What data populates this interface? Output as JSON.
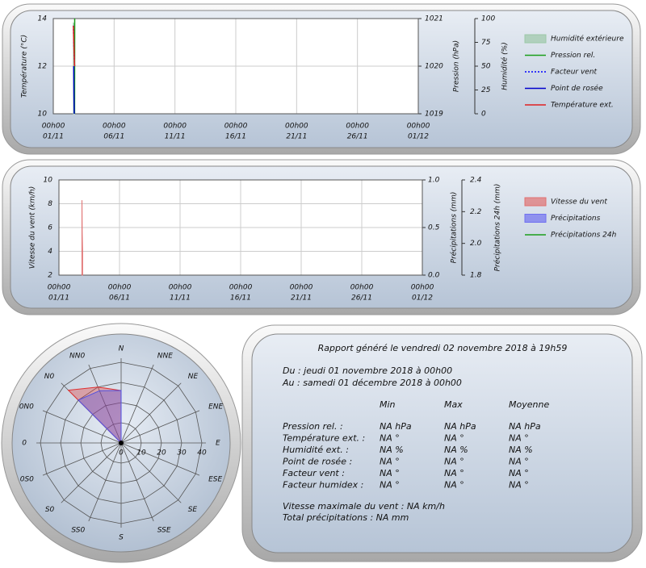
{
  "chart_data": [
    {
      "type": "line",
      "xlim": [
        1,
        31
      ],
      "xticks": [
        {
          "value": 1,
          "label": [
            "00h00",
            "01/11"
          ]
        },
        {
          "value": 6,
          "label": [
            "00h00",
            "06/11"
          ]
        },
        {
          "value": 11,
          "label": [
            "00h00",
            "11/11"
          ]
        },
        {
          "value": 16,
          "label": [
            "00h00",
            "16/11"
          ]
        },
        {
          "value": 21,
          "label": [
            "00h00",
            "21/11"
          ]
        },
        {
          "value": 26,
          "label": [
            "00h00",
            "26/11"
          ]
        },
        {
          "value": 31,
          "label": [
            "00h00",
            "01/12"
          ]
        }
      ],
      "ylabel": "Température (°C)",
      "ylim": [
        10,
        14
      ],
      "yticks": [
        10,
        12,
        14
      ],
      "y2label": "Pression (hPa)",
      "y2lim": [
        1019,
        1021
      ],
      "y2ticks": [
        1019,
        1020,
        1021
      ],
      "y3label": "Humidité (%)",
      "y3lim": [
        0,
        100
      ],
      "y3ticks": [
        0,
        25,
        50,
        75,
        100
      ],
      "grid": true,
      "legend": "right",
      "series": [
        {
          "name": "Humidité extérieure",
          "style": "area",
          "color": "#9cc8a8",
          "axis": "y3",
          "x": [
            2.65,
            2.7,
            2.75
          ],
          "values": [
            95,
            94,
            96
          ]
        },
        {
          "name": "Pression rel.",
          "style": "line",
          "color": "#1a9e1a",
          "axis": "y2",
          "x": [
            2.75,
            2.76
          ],
          "values": [
            1019.0,
            1021.0
          ]
        },
        {
          "name": "Facteur vent",
          "style": "dotted",
          "color": "#0000ff",
          "x": [
            2.65,
            2.7,
            2.75
          ],
          "values": [
            13.7,
            12.8,
            12.0
          ]
        },
        {
          "name": "Point de rosée",
          "style": "line",
          "color": "#0000cc",
          "x": [
            2.68,
            2.7,
            2.72
          ],
          "values": [
            12.0,
            10.8,
            10.0
          ]
        },
        {
          "name": "Température ext.",
          "style": "line",
          "color": "#e02020",
          "x": [
            2.65,
            2.7,
            2.75
          ],
          "values": [
            13.7,
            12.8,
            12.0
          ]
        }
      ]
    },
    {
      "type": "line",
      "xlim": [
        1,
        31
      ],
      "xticks": [
        {
          "value": 1,
          "label": [
            "00h00",
            "01/11"
          ]
        },
        {
          "value": 6,
          "label": [
            "00h00",
            "06/11"
          ]
        },
        {
          "value": 11,
          "label": [
            "00h00",
            "11/11"
          ]
        },
        {
          "value": 16,
          "label": [
            "00h00",
            "16/11"
          ]
        },
        {
          "value": 21,
          "label": [
            "00h00",
            "21/11"
          ]
        },
        {
          "value": 26,
          "label": [
            "00h00",
            "26/11"
          ]
        },
        {
          "value": 31,
          "label": [
            "00h00",
            "01/12"
          ]
        }
      ],
      "ylabel": "Vitesse du vent (km/h)",
      "ylim": [
        2,
        10
      ],
      "yticks": [
        2,
        4,
        6,
        8,
        10
      ],
      "y2label": "Précipitations (mm)",
      "y2lim": [
        0,
        1
      ],
      "y2ticks": [
        {
          "value": 0,
          "label": "0.0"
        },
        0.5,
        {
          "value": 1,
          "label": "1.0"
        }
      ],
      "y3label": "Précipitations 24h (mm)",
      "y3lim": [
        1.8,
        2.4
      ],
      "y3ticks": [
        1.8,
        {
          "value": 2,
          "label": "2.0"
        },
        2.2,
        2.4
      ],
      "grid": true,
      "legend": "right",
      "series": [
        {
          "name": "Vitesse du vent",
          "style": "area",
          "color": "#e07070",
          "x": [
            2.9,
            2.92,
            2.95
          ],
          "values": [
            8.3,
            5.5,
            4.0
          ]
        },
        {
          "name": "Précipitations",
          "style": "area",
          "color": "#7070f0",
          "axis": "y2",
          "x": [],
          "values": []
        },
        {
          "name": "Précipitations 24h",
          "style": "line",
          "color": "#1a9e1a",
          "axis": "y3",
          "x": [],
          "values": []
        }
      ]
    },
    {
      "type": "radar",
      "categories": [
        "N",
        "NNE",
        "NE",
        "ENE",
        "E",
        "ESE",
        "SE",
        "SSE",
        "S",
        "SS0",
        "S0",
        "0S0",
        "0",
        "0N0",
        "N0",
        "NN0"
      ],
      "rlim": [
        0,
        42
      ],
      "rticks": [
        0,
        10,
        20,
        30,
        40
      ],
      "series": [
        {
          "color": "#e03030",
          "values": [
            26,
            0,
            0,
            0,
            0,
            0,
            0,
            0,
            0,
            0,
            0,
            0,
            0,
            0,
            37,
            30
          ]
        },
        {
          "color": "#5050e0",
          "values": [
            26,
            0,
            0,
            0,
            0,
            0,
            0,
            0,
            0,
            0,
            0,
            0,
            0,
            0,
            30,
            28
          ]
        }
      ]
    }
  ],
  "report": {
    "title": "Rapport généré le vendredi 02 novembre 2018 à 19h59",
    "du": "Du : jeudi 01 novembre 2018 à 00h00",
    "au": "Au : samedi 01 décembre 2018 à 00h00",
    "headers": [
      "Min",
      "Max",
      "Moyenne"
    ],
    "rows": [
      {
        "label": "Pression rel. :",
        "cells": [
          "NA hPa",
          "NA hPa",
          "NA hPa"
        ]
      },
      {
        "label": "Température ext. :",
        "cells": [
          "NA °",
          "NA °",
          "NA °"
        ]
      },
      {
        "label": "Humidité ext. :",
        "cells": [
          "NA %",
          "NA %",
          "NA %"
        ]
      },
      {
        "label": "Point de rosée :",
        "cells": [
          "NA °",
          "NA °",
          "NA °"
        ]
      },
      {
        "label": "Facteur vent :",
        "cells": [
          "NA °",
          "NA °",
          "NA °"
        ]
      },
      {
        "label": "Facteur humidex :",
        "cells": [
          "NA °",
          "NA °",
          "NA °"
        ]
      }
    ],
    "vmax": "Vitesse maximale du vent : NA km/h",
    "precip": "Total précipitations : NA mm"
  }
}
